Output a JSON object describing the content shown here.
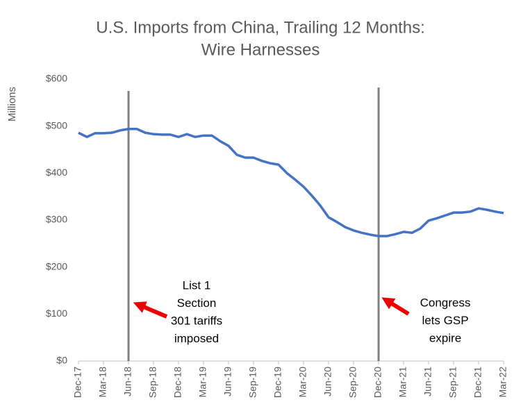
{
  "chart_data": {
    "type": "line",
    "title": [
      "U.S. Imports from China, Trailing 12 Months:",
      "Wire Harnesses"
    ],
    "y_label": "Millions",
    "categories": [
      "Dec-17",
      null,
      null,
      "Mar-18",
      null,
      null,
      "Jun-18",
      null,
      null,
      "Sep-18",
      null,
      null,
      "Dec-18",
      null,
      null,
      "Mar-19",
      null,
      null,
      "Jun-19",
      null,
      null,
      "Sep-19",
      null,
      null,
      "Dec-19",
      null,
      null,
      "Mar-20",
      null,
      null,
      "Jun-20",
      null,
      null,
      "Sep-20",
      null,
      null,
      "Dec-20",
      null,
      null,
      "Mar-21",
      null,
      null,
      "Jun-21",
      null,
      null,
      "Sep-21",
      null,
      null,
      "Dec-21",
      null,
      null,
      "Mar-22"
    ],
    "series": [
      {
        "name": "Imports",
        "color": "#4472c4",
        "values": [
          486,
          477,
          485,
          485,
          486,
          491,
          494,
          494,
          486,
          483,
          482,
          482,
          477,
          483,
          477,
          480,
          480,
          468,
          458,
          439,
          433,
          433,
          426,
          421,
          418,
          400,
          386,
          371,
          352,
          331,
          306,
          296,
          285,
          278,
          273,
          269,
          266,
          266,
          270,
          275,
          273,
          282,
          299,
          304,
          310,
          316,
          316,
          318,
          325,
          322,
          318,
          315
        ]
      }
    ],
    "ylim": [
      0,
      600
    ],
    "yticks": [
      {
        "value": 0,
        "label": "$0"
      },
      {
        "value": 100,
        "label": "$100"
      },
      {
        "value": 200,
        "label": "$200"
      },
      {
        "value": 300,
        "label": "$300"
      },
      {
        "value": 400,
        "label": "$400"
      },
      {
        "value": 500,
        "label": "$500"
      },
      {
        "value": 600,
        "label": "$600"
      }
    ],
    "grid": false,
    "annotations": [
      {
        "at": "Jun-18",
        "lines": [
          "List 1",
          "Section",
          "301 tariffs",
          "imposed"
        ]
      },
      {
        "at": "Dec-20",
        "lines": [
          "Congress",
          "lets GSP",
          "expire"
        ]
      }
    ]
  }
}
